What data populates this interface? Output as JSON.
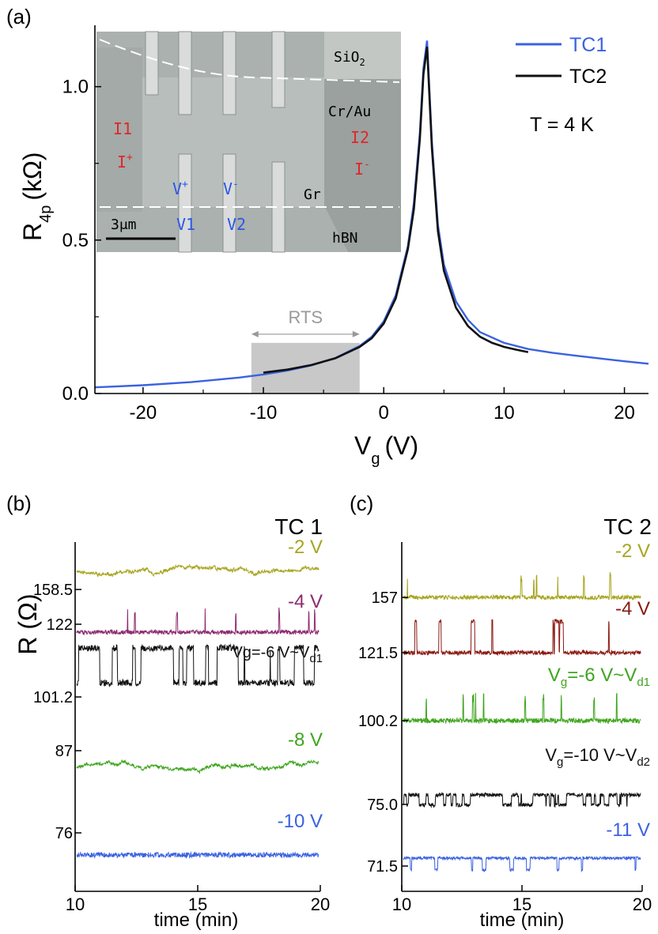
{
  "figure": {
    "panel_a_label": "(a)",
    "panel_b_label": "(b)",
    "panel_c_label": "(c)"
  },
  "colors": {
    "tc1": "#3b62e0",
    "tc2": "#111111",
    "olive": "#a7a520",
    "purple": "#8d2a6f",
    "darkred": "#8a1a12",
    "green": "#3fa51f",
    "blue": "#3b62e0",
    "black": "#111111",
    "rts_box": "#c8c8c8",
    "inset_red": "#e0262a",
    "inset_blue": "#2a56e8"
  },
  "chart_data": [
    {
      "type": "line",
      "panel": "a",
      "xlabel": "V",
      "xlabel_sub": "g",
      "xlabel_unit": "(V)",
      "ylabel": "R",
      "ylabel_sub": "4p",
      "ylabel_unit": "(kΩ)",
      "xlim": [
        -24,
        22
      ],
      "ylim": [
        0,
        1.2
      ],
      "xticks": [
        -20,
        -10,
        0,
        10,
        20
      ],
      "xtick_labels": [
        "-20",
        "-10",
        "0",
        "10",
        "20"
      ],
      "yticks": [
        0.0,
        0.5,
        1.0
      ],
      "ytick_labels": [
        "0.0",
        "0.5",
        "1.0"
      ],
      "temperature": "T = 4 K",
      "rts_label": "RTS",
      "rts_range": [
        -11,
        -2
      ],
      "rts_box_top": 0.165,
      "series": [
        {
          "name": "TC1",
          "color": "#3b62e0",
          "x": [
            -24,
            -20,
            -16,
            -12,
            -10,
            -8,
            -6,
            -4,
            -2,
            -1,
            0,
            1,
            2,
            2.5,
            3,
            3.3,
            3.6,
            4,
            4.5,
            5,
            6,
            7,
            8,
            10,
            12,
            14,
            16,
            18,
            20,
            22
          ],
          "y": [
            0.02,
            0.027,
            0.037,
            0.052,
            0.062,
            0.075,
            0.092,
            0.116,
            0.155,
            0.185,
            0.235,
            0.32,
            0.48,
            0.62,
            0.85,
            1.06,
            1.15,
            0.82,
            0.55,
            0.42,
            0.3,
            0.24,
            0.2,
            0.165,
            0.145,
            0.133,
            0.123,
            0.114,
            0.105,
            0.097
          ]
        },
        {
          "name": "TC2",
          "color": "#111111",
          "x": [
            -10,
            -8,
            -6,
            -4,
            -2,
            -1,
            0,
            1,
            2,
            2.5,
            3,
            3.3,
            3.6,
            4,
            4.5,
            5,
            6,
            7,
            8,
            9,
            10,
            11,
            12
          ],
          "y": [
            0.068,
            0.078,
            0.093,
            0.115,
            0.152,
            0.18,
            0.228,
            0.31,
            0.47,
            0.6,
            0.83,
            1.04,
            1.13,
            0.8,
            0.53,
            0.4,
            0.28,
            0.22,
            0.185,
            0.165,
            0.152,
            0.143,
            0.135
          ]
        }
      ],
      "inset": {
        "labels": {
          "sio2": "SiO",
          "sio2_sub": "2",
          "crau": "Cr/Au",
          "i1": "I1",
          "iplus": "I",
          "iplus_sup": "+",
          "i2": "I2",
          "iminus": "I",
          "iminus_sup": "-",
          "vplus": "V",
          "vplus_sup": "+",
          "vminus": "V",
          "vminus_sup": "-",
          "gr": "Gr",
          "scale": "3μm",
          "v1": "V1",
          "v2": "V2",
          "hbn": "hBN"
        }
      }
    },
    {
      "type": "line",
      "panel": "b",
      "title": "TC 1",
      "ylabel": "R (Ω)",
      "xlabel": "time (min)",
      "xlim": [
        10,
        20
      ],
      "xticks": [
        10,
        15,
        20
      ],
      "xtick_labels": [
        "10",
        "15",
        "20"
      ],
      "traces": [
        {
          "label": "-2 V",
          "color": "#a7a520",
          "tick_label": "158.5",
          "style": "wander"
        },
        {
          "label": "-4 V",
          "color": "#8d2a6f",
          "tick_label": "122",
          "style": "spikes"
        },
        {
          "label": "Vg=-6 V~V",
          "label_sub": "d1",
          "color": "#111111",
          "tick_label": "101.2",
          "style": "rts"
        },
        {
          "label": "-8 V",
          "color": "#3fa51f",
          "tick_label": "87",
          "style": "wander"
        },
        {
          "label": "-10 V",
          "color": "#3b62e0",
          "tick_label": "76",
          "style": "noise"
        }
      ]
    },
    {
      "type": "line",
      "panel": "c",
      "title": "TC 2",
      "xlabel": "time (min)",
      "xlim": [
        10,
        20
      ],
      "xticks": [
        10,
        15,
        20
      ],
      "xtick_labels": [
        "10",
        "15",
        "20"
      ],
      "traces": [
        {
          "label": "-2 V",
          "color": "#a7a520",
          "tick_label": "157",
          "style": "spikes"
        },
        {
          "label": "-4 V",
          "color": "#8a1a12",
          "tick_label": "121.5",
          "style": "rts_deep"
        },
        {
          "label": "V",
          "label_sub": "g",
          "label_rest": "=-6 V~V",
          "label_sub2": "d1",
          "color": "#3fa51f",
          "tick_label": "100.2",
          "style": "spikes"
        },
        {
          "label": "V",
          "label_sub": "g",
          "label_rest": "=-10 V~V",
          "label_sub2": "d2",
          "color": "#111111",
          "tick_label": "75.0",
          "style": "rts_small"
        },
        {
          "label": "-11 V",
          "color": "#3b62e0",
          "tick_label": "71.5",
          "style": "rts_up"
        }
      ]
    }
  ]
}
